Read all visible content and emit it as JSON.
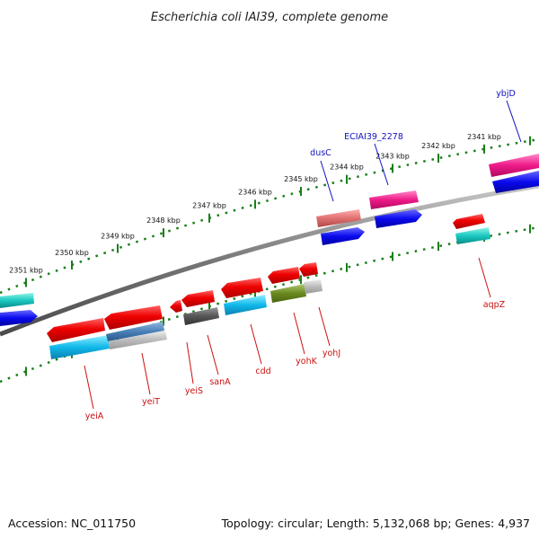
{
  "title": "Escherichia coli IAI39, complete genome",
  "footer": {
    "accession": "Accession: NC_011750",
    "summary": "Topology: circular; Length: 5,132,068 bp; Genes: 4,937"
  },
  "colors": {
    "top_label": "#1010c0",
    "bottom_label": "#cc1010",
    "tick": "#1a7f1a",
    "backbone": "#777777"
  },
  "ticks": [
    {
      "label": "2351 kbp"
    },
    {
      "label": "2350 kbp"
    },
    {
      "label": "2349 kbp"
    },
    {
      "label": "2348 kbp"
    },
    {
      "label": "2347 kbp"
    },
    {
      "label": "2346 kbp"
    },
    {
      "label": "2345 kbp"
    },
    {
      "label": "2344 kbp"
    },
    {
      "label": "2343 kbp"
    },
    {
      "label": "2342 kbp"
    },
    {
      "label": "2341 kbp"
    }
  ],
  "top_labels": [
    {
      "name": "dusC"
    },
    {
      "name": "ECIAI39_2278"
    },
    {
      "name": "ybjD"
    }
  ],
  "bottom_labels": [
    {
      "name": "yeiA"
    },
    {
      "name": "yeiT"
    },
    {
      "name": "yeiS"
    },
    {
      "name": "sanA"
    },
    {
      "name": "cdd"
    },
    {
      "name": "yohK"
    },
    {
      "name": "yohJ"
    },
    {
      "name": "aqpZ"
    }
  ]
}
